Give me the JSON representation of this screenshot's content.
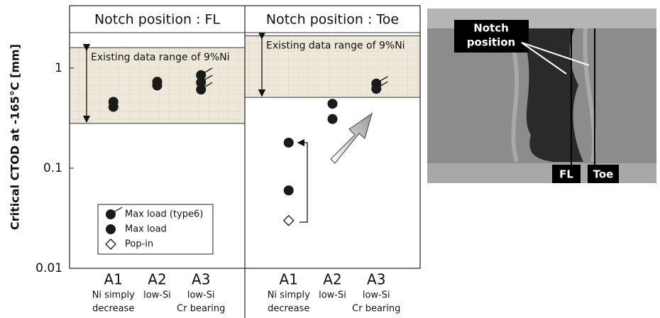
{
  "chart_data": {
    "type": "scatter",
    "ylabel": "Critical CTOD at -165°C [mm]",
    "log_y": true,
    "ylim": [
      0.01,
      4.2
    ],
    "yticks": [
      0.01,
      0.1,
      1
    ],
    "legend": "lower left",
    "series": [
      {
        "name": "Max load (type6)",
        "marker": "circle-tick",
        "color": "#1a1a1a"
      },
      {
        "name": "Max load",
        "marker": "circle",
        "color": "#1a1a1a"
      },
      {
        "name": "Pop-in",
        "marker": "diamond",
        "color": "#ffffff"
      }
    ],
    "panels": [
      {
        "title": "Notch position : FL",
        "band": {
          "label": "Existing data range of 9%Ni",
          "range": [
            0.28,
            1.6
          ]
        },
        "categories": [
          "A1",
          "A2",
          "A3"
        ],
        "category_notes": [
          [
            "Ni simply",
            "decrease"
          ],
          [
            "low-Si"
          ],
          [
            "low-Si",
            "Cr bearing"
          ]
        ],
        "series": [
          {
            "x": [
              "A3",
              "A3",
              "A3"
            ],
            "values": [
              0.85,
              0.72,
              0.61
            ]
          },
          {
            "x": [
              "A1",
              "A1",
              "A2",
              "A2"
            ],
            "values": [
              0.46,
              0.41,
              0.73,
              0.67
            ]
          },
          {
            "x": [],
            "values": []
          }
        ]
      },
      {
        "title": "Notch position : Toe",
        "band": {
          "label": "Existing data range of 9%Ni",
          "range": [
            0.51,
            2.1
          ]
        },
        "categories": [
          "A1",
          "A2",
          "A3"
        ],
        "category_notes": [
          [
            "Ni simply",
            "decrease"
          ],
          [
            "low-Si"
          ],
          [
            "low-Si",
            "Cr bearing"
          ]
        ],
        "series": [
          {
            "x": [
              "A3",
              "A3"
            ],
            "values": [
              0.7,
              0.62
            ]
          },
          {
            "x": [
              "A1",
              "A1",
              "A2",
              "A2"
            ],
            "values": [
              0.18,
              0.06,
              0.44,
              0.31
            ]
          },
          {
            "x": [
              "A1"
            ],
            "values": [
              0.03
            ]
          }
        ]
      }
    ]
  },
  "photo": {
    "notch_label": [
      "Notch",
      "position"
    ],
    "line_labels": [
      "FL",
      "Toe"
    ]
  }
}
